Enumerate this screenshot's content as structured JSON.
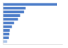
{
  "chart_data": {
    "type": "bar",
    "orientation": "horizontal",
    "categories": [
      null,
      null,
      null,
      null,
      null,
      null,
      null,
      null,
      null,
      null,
      null
    ],
    "values": [
      100,
      42,
      39,
      32,
      28,
      21,
      17,
      13,
      12,
      11,
      8
    ],
    "colors": [
      "#4a7bc8",
      "#4a7bc8",
      "#4a7bc8",
      "#4a7bc8",
      "#4a7bc8",
      "#4a7bc8",
      "#4a7bc8",
      "#4a7bc8",
      "#4a7bc8",
      "#4a7bc8",
      "#a9c3e8"
    ],
    "xlim": [
      0,
      110
    ],
    "tick_labels": false,
    "grid": false
  }
}
